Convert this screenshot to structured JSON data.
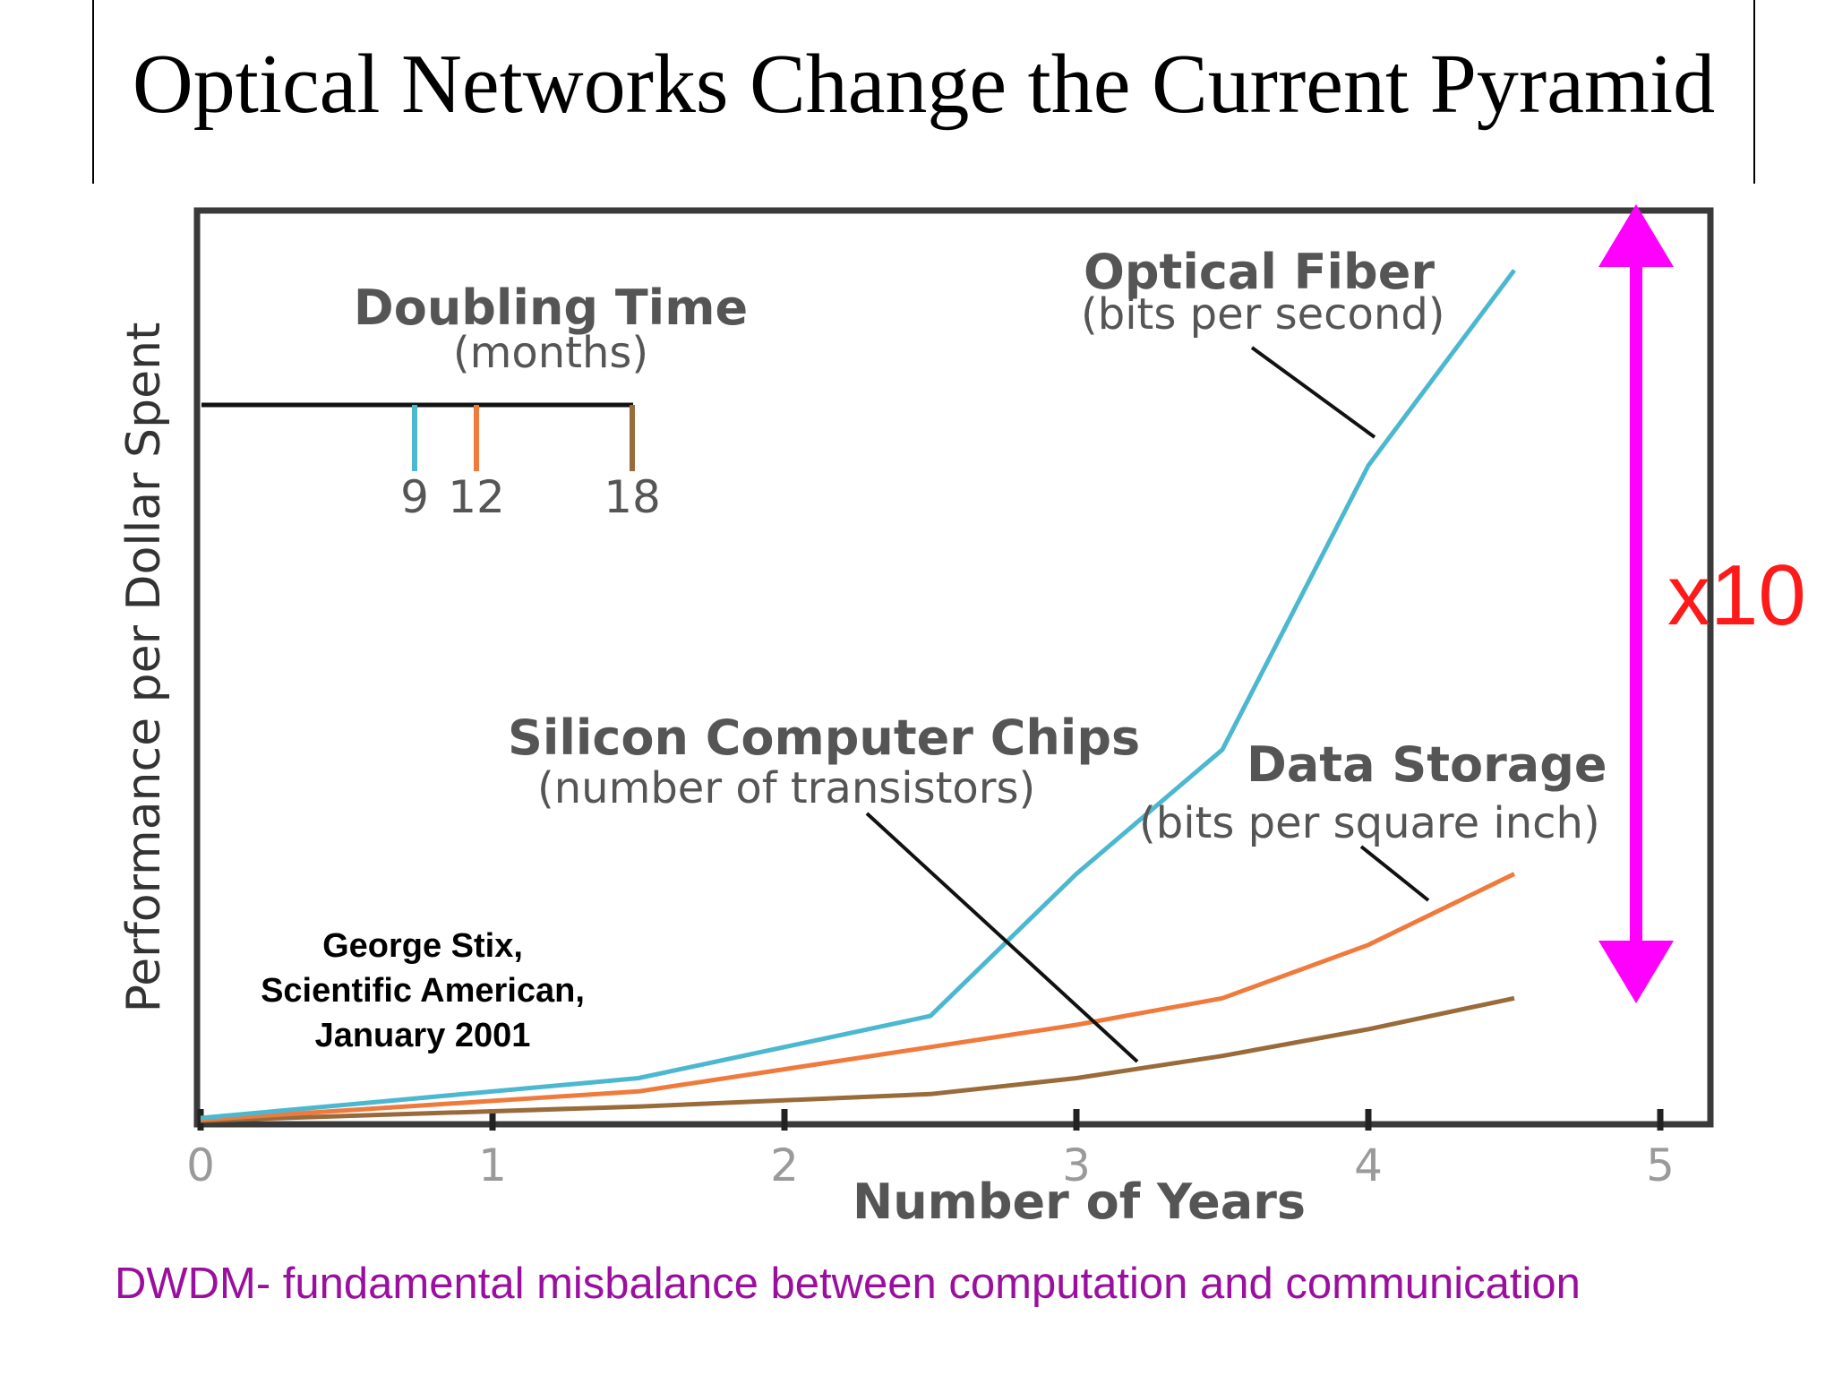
{
  "slide": {
    "title": "Optical Networks Change the Current Pyramid",
    "caption": "DWDM- fundamental misbalance between computation and communication",
    "multiplier_label": "x10",
    "colors": {
      "multiplier_text": "#ff1a1a",
      "arrow": "#ff00ff",
      "caption": "#9a0f9e"
    }
  },
  "chart_data": {
    "type": "line",
    "title": "",
    "xlabel": "Number of Years",
    "ylabel": "Performance per Dollar Spent",
    "xlim": [
      0,
      5.3
    ],
    "ylim": [
      0,
      100
    ],
    "x_ticks": [
      0,
      1,
      2,
      3,
      4,
      5
    ],
    "x_tick_labels": [
      "0",
      "1",
      "2",
      "3",
      "4",
      "5"
    ],
    "grid": false,
    "legend": {
      "title": "Doubling Time",
      "subtitle": "(months)",
      "entries": [
        {
          "label": "9",
          "color": "#4bb8d0"
        },
        {
          "label": "12",
          "color": "#f07a3c"
        },
        {
          "label": "18",
          "color": "#9a6b3a"
        }
      ]
    },
    "series": [
      {
        "name": "Optical Fiber",
        "subtitle": "(bits per second)",
        "color": "#4bb8d0",
        "x": [
          0,
          1.5,
          2.5,
          3,
          3.5,
          4,
          4.5
        ],
        "y": [
          0.5,
          5,
          12,
          28,
          42,
          74,
          96
        ]
      },
      {
        "name": "Data Storage",
        "subtitle": "(bits per square inch)",
        "color": "#f07a3c",
        "x": [
          0,
          1.5,
          2.5,
          3,
          3.5,
          4,
          4.5
        ],
        "y": [
          0.3,
          3.5,
          8.5,
          11,
          14,
          20,
          28
        ]
      },
      {
        "name": "Silicon Computer Chips",
        "subtitle": "(number of transistors)",
        "color": "#9a6b3a",
        "x": [
          0,
          1.5,
          2.5,
          3,
          3.5,
          4,
          4.5
        ],
        "y": [
          0.2,
          1.8,
          3.2,
          5,
          7.5,
          10.5,
          14
        ]
      }
    ],
    "annotations": [
      {
        "id": "optical-fiber",
        "lines": [
          "Optical Fiber",
          "(bits per second)"
        ]
      },
      {
        "id": "silicon-chips",
        "lines": [
          "Silicon Computer Chips",
          "(number of transistors)"
        ]
      },
      {
        "id": "data-storage",
        "lines": [
          "Data Storage",
          "(bits per square inch)"
        ]
      },
      {
        "id": "source",
        "lines": [
          "George Stix,",
          "Scientific American,",
          "January 2001"
        ]
      }
    ]
  }
}
